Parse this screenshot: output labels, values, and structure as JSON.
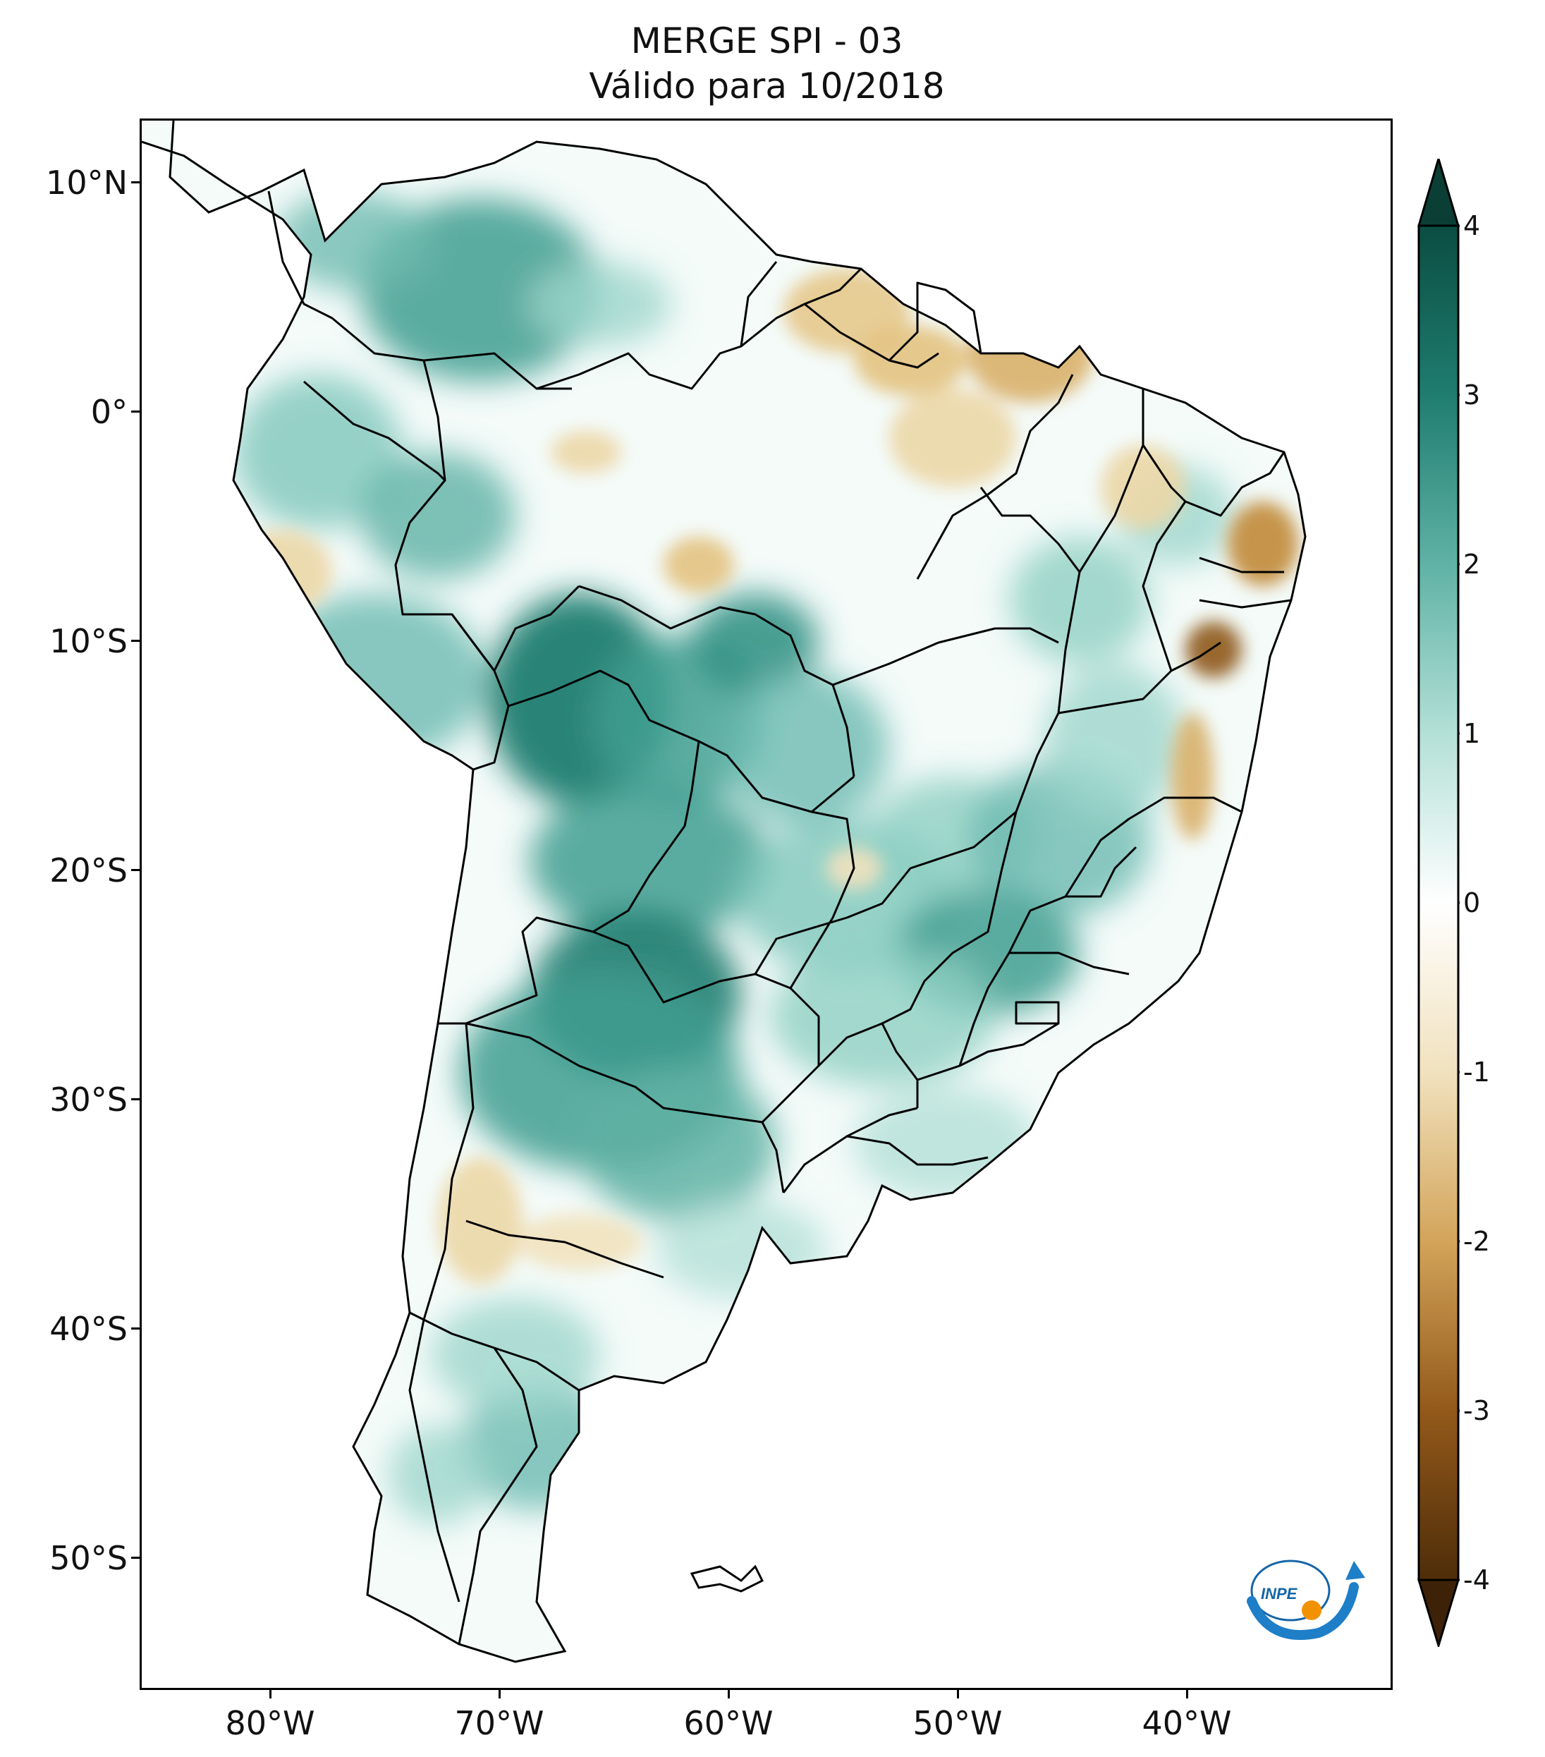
{
  "title": {
    "line1": "MERGE   SPI - 03",
    "line2": "Válido para 10/2018"
  },
  "axes": {
    "lat_labels": [
      "10°N",
      "0°",
      "10°S",
      "20°S",
      "30°S",
      "40°S",
      "50°S"
    ],
    "lon_labels": [
      "80°W",
      "70°W",
      "60°W",
      "50°W",
      "40°W"
    ]
  },
  "colorbar": {
    "ticks": [
      "4",
      "3",
      "2",
      "1",
      "0",
      "-1",
      "-2",
      "-3",
      "-4"
    ],
    "colors": {
      "strong_wet": "#0b4d42",
      "wet": "#2a8d80",
      "moist": "#9dd6cc",
      "neutral": "#ffffff",
      "dry": "#ecd7a7",
      "very_dry": "#b77a2a",
      "extreme_dry": "#4e2d09"
    }
  },
  "logo": {
    "text": "INPE",
    "icon": "inpe-logo-icon"
  }
}
